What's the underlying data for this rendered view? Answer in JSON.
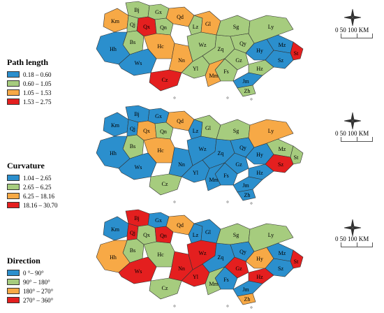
{
  "colors": {
    "blue": "#2b8fcd",
    "green": "#a6cc7e",
    "orange": "#f7a946",
    "red": "#e41f1f"
  },
  "scale": {
    "label": "0   50 100 KM"
  },
  "panels": [
    {
      "legend": {
        "title": "Path length",
        "items": [
          {
            "label": "0.18 – 0.60",
            "color": "#2b8fcd"
          },
          {
            "label": "0.60 – 1.05",
            "color": "#a6cc7e"
          },
          {
            "label": "1.05 – 1.53",
            "color": "#f7a946"
          },
          {
            "label": "1.53 – 2.75",
            "color": "#e41f1f"
          }
        ]
      },
      "regions": [
        {
          "name": "Bj",
          "c": 1
        },
        {
          "name": "Gx",
          "c": 1
        },
        {
          "name": "Km",
          "c": 2
        },
        {
          "name": "Qj",
          "c": 1
        },
        {
          "name": "Qx",
          "c": 3
        },
        {
          "name": "Qn",
          "c": 1
        },
        {
          "name": "Qd",
          "c": 2
        },
        {
          "name": "Lz",
          "c": 1
        },
        {
          "name": "Gl",
          "c": 2
        },
        {
          "name": "Bs",
          "c": 1
        },
        {
          "name": "Hc",
          "c": 2
        },
        {
          "name": "Hh",
          "c": 0
        },
        {
          "name": "Ws",
          "c": 0
        },
        {
          "name": "Nn",
          "c": 2
        },
        {
          "name": "Yl",
          "c": 1
        },
        {
          "name": "Cz",
          "c": 3
        },
        {
          "name": "Wz",
          "c": 1
        },
        {
          "name": "Zq",
          "c": 1
        },
        {
          "name": "Sg",
          "c": 1
        },
        {
          "name": "Qy",
          "c": 1
        },
        {
          "name": "Gz",
          "c": 1
        },
        {
          "name": "Hy",
          "c": 0
        },
        {
          "name": "Mz",
          "c": 0
        },
        {
          "name": "Ly",
          "c": 1
        },
        {
          "name": "Fs",
          "c": 1
        },
        {
          "name": "Hz",
          "c": 1
        },
        {
          "name": "Mm",
          "c": 2
        },
        {
          "name": "Jm",
          "c": 0
        },
        {
          "name": "Zh",
          "c": 1
        },
        {
          "name": "St",
          "c": 3
        },
        {
          "name": "Sz",
          "c": 0
        }
      ]
    },
    {
      "legend": {
        "title": "Curvature",
        "items": [
          {
            "label": "1.04 – 2.65",
            "color": "#2b8fcd"
          },
          {
            "label": "2.65 – 6.25",
            "color": "#a6cc7e"
          },
          {
            "label": "6.25 – 18.16",
            "color": "#f7a946"
          },
          {
            "label": "18.16 – 30.70",
            "color": "#e41f1f"
          }
        ]
      },
      "regions": [
        {
          "name": "Bj",
          "c": 0
        },
        {
          "name": "Gx",
          "c": 0
        },
        {
          "name": "Km",
          "c": 0
        },
        {
          "name": "Qj",
          "c": 0
        },
        {
          "name": "Qx",
          "c": 2
        },
        {
          "name": "Qn",
          "c": 1
        },
        {
          "name": "Qd",
          "c": 2
        },
        {
          "name": "Lz",
          "c": 0
        },
        {
          "name": "Gl",
          "c": 1
        },
        {
          "name": "Bs",
          "c": 1
        },
        {
          "name": "Hc",
          "c": 2
        },
        {
          "name": "Hh",
          "c": 0
        },
        {
          "name": "Ws",
          "c": 0
        },
        {
          "name": "Nn",
          "c": 0
        },
        {
          "name": "Yl",
          "c": 0
        },
        {
          "name": "Cz",
          "c": 1
        },
        {
          "name": "Wz",
          "c": 0
        },
        {
          "name": "Zq",
          "c": 0
        },
        {
          "name": "Sg",
          "c": 1
        },
        {
          "name": "Qy",
          "c": 0
        },
        {
          "name": "Gz",
          "c": 0
        },
        {
          "name": "Hy",
          "c": 0
        },
        {
          "name": "Mz",
          "c": 1
        },
        {
          "name": "Ly",
          "c": 2
        },
        {
          "name": "Fs",
          "c": 0
        },
        {
          "name": "Hz",
          "c": 0
        },
        {
          "name": "Mm",
          "c": 0
        },
        {
          "name": "Jm",
          "c": 0
        },
        {
          "name": "Zh",
          "c": 0
        },
        {
          "name": "St",
          "c": 1
        },
        {
          "name": "Sz",
          "c": 3
        }
      ]
    },
    {
      "legend": {
        "title": "Direction",
        "items": [
          {
            "label": "0 °– 90°",
            "color": "#2b8fcd"
          },
          {
            "label": "90° – 180°",
            "color": "#a6cc7e"
          },
          {
            "label": "180° – 270°",
            "color": "#f7a946"
          },
          {
            "label": "270° – 360°",
            "color": "#e41f1f"
          }
        ]
      },
      "regions": [
        {
          "name": "Bj",
          "c": 3
        },
        {
          "name": "Gx",
          "c": 0
        },
        {
          "name": "Km",
          "c": 0
        },
        {
          "name": "Qj",
          "c": 3
        },
        {
          "name": "Qx",
          "c": 1
        },
        {
          "name": "Qn",
          "c": 3
        },
        {
          "name": "Qd",
          "c": 2
        },
        {
          "name": "Lz",
          "c": 0
        },
        {
          "name": "Gl",
          "c": 0
        },
        {
          "name": "Bs",
          "c": 1
        },
        {
          "name": "Hc",
          "c": 1
        },
        {
          "name": "Hh",
          "c": 2
        },
        {
          "name": "Ws",
          "c": 3
        },
        {
          "name": "Nn",
          "c": 3
        },
        {
          "name": "Yl",
          "c": 3
        },
        {
          "name": "Cz",
          "c": 1
        },
        {
          "name": "Wz",
          "c": 3
        },
        {
          "name": "Zq",
          "c": 0
        },
        {
          "name": "Sg",
          "c": 1
        },
        {
          "name": "Qy",
          "c": 0
        },
        {
          "name": "Gz",
          "c": 3
        },
        {
          "name": "Hy",
          "c": 2
        },
        {
          "name": "Mz",
          "c": 0
        },
        {
          "name": "Ly",
          "c": 1
        },
        {
          "name": "Fs",
          "c": 0
        },
        {
          "name": "Hz",
          "c": 3
        },
        {
          "name": "Mm",
          "c": 1
        },
        {
          "name": "Jm",
          "c": 0
        },
        {
          "name": "Zh",
          "c": 2
        },
        {
          "name": "St",
          "c": 3
        },
        {
          "name": "Sz",
          "c": 0
        }
      ]
    }
  ]
}
